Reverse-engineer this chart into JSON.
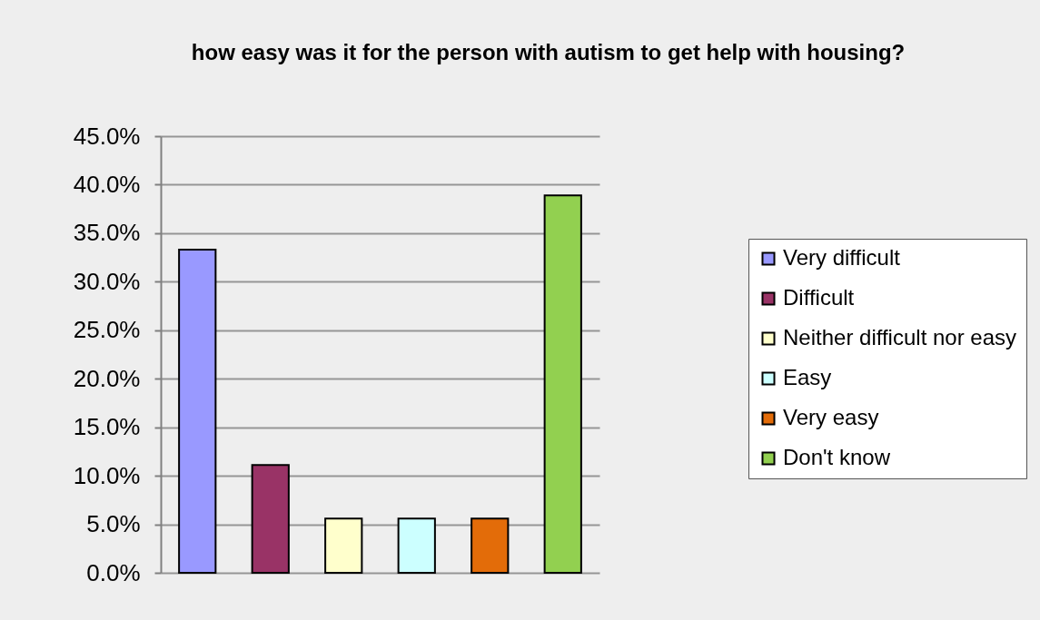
{
  "chart_data": {
    "type": "bar",
    "title": "how easy was it for the person with autism to get help with housing?",
    "categories": [
      null
    ],
    "series": [
      {
        "name": "Very difficult",
        "color": "#9999ff",
        "values": [
          33.3
        ]
      },
      {
        "name": "Difficult",
        "color": "#993366",
        "values": [
          11.1
        ]
      },
      {
        "name": "Neither difficult nor easy",
        "color": "#ffffcc",
        "values": [
          5.6
        ]
      },
      {
        "name": "Easy",
        "color": "#ccffff",
        "values": [
          5.6
        ]
      },
      {
        "name": "Very easy",
        "color": "#e36c09",
        "values": [
          5.6
        ]
      },
      {
        "name": "Don't know",
        "color": "#92d050",
        "values": [
          38.9
        ]
      }
    ],
    "ylim": [
      0,
      45
    ],
    "yticks": [
      {
        "value": 0,
        "label": "0.0%"
      },
      {
        "value": 5,
        "label": "5.0%"
      },
      {
        "value": 10,
        "label": "10.0%"
      },
      {
        "value": 15,
        "label": "15.0%"
      },
      {
        "value": 20,
        "label": "20.0%"
      },
      {
        "value": 25,
        "label": "25.0%"
      },
      {
        "value": 30,
        "label": "30.0%"
      },
      {
        "value": 35,
        "label": "35.0%"
      },
      {
        "value": 40,
        "label": "40.0%"
      },
      {
        "value": 45,
        "label": "45.0%"
      }
    ],
    "tick_labels": "y",
    "grid": "y",
    "legend": "right"
  }
}
